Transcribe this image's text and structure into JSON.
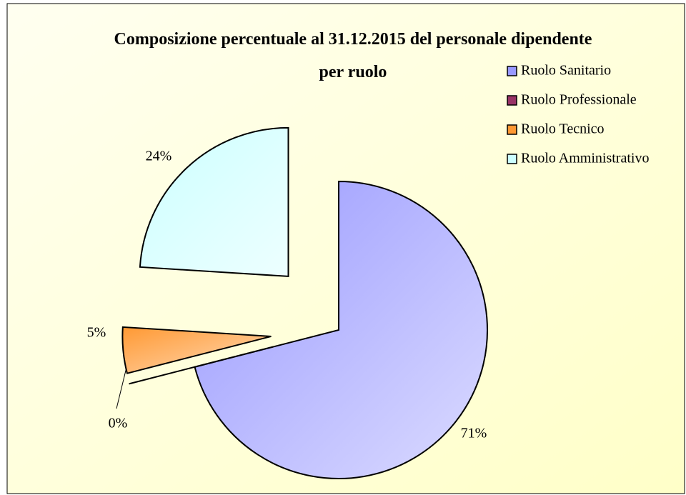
{
  "chart_data": {
    "type": "pie",
    "title": "Composizione percentuale al 31.12.2015 del personale dipendente per ruolo",
    "categories": [
      "Ruolo Sanitario",
      "Ruolo Professionale",
      "Ruolo Tecnico",
      "Ruolo Amministrativo"
    ],
    "values": [
      71,
      0,
      5,
      24
    ],
    "value_labels": [
      "71%",
      "0%",
      "5%",
      "24%"
    ],
    "colors": [
      "#9999ff",
      "#993366",
      "#ff9933",
      "#ccffff"
    ],
    "legend": "right"
  }
}
